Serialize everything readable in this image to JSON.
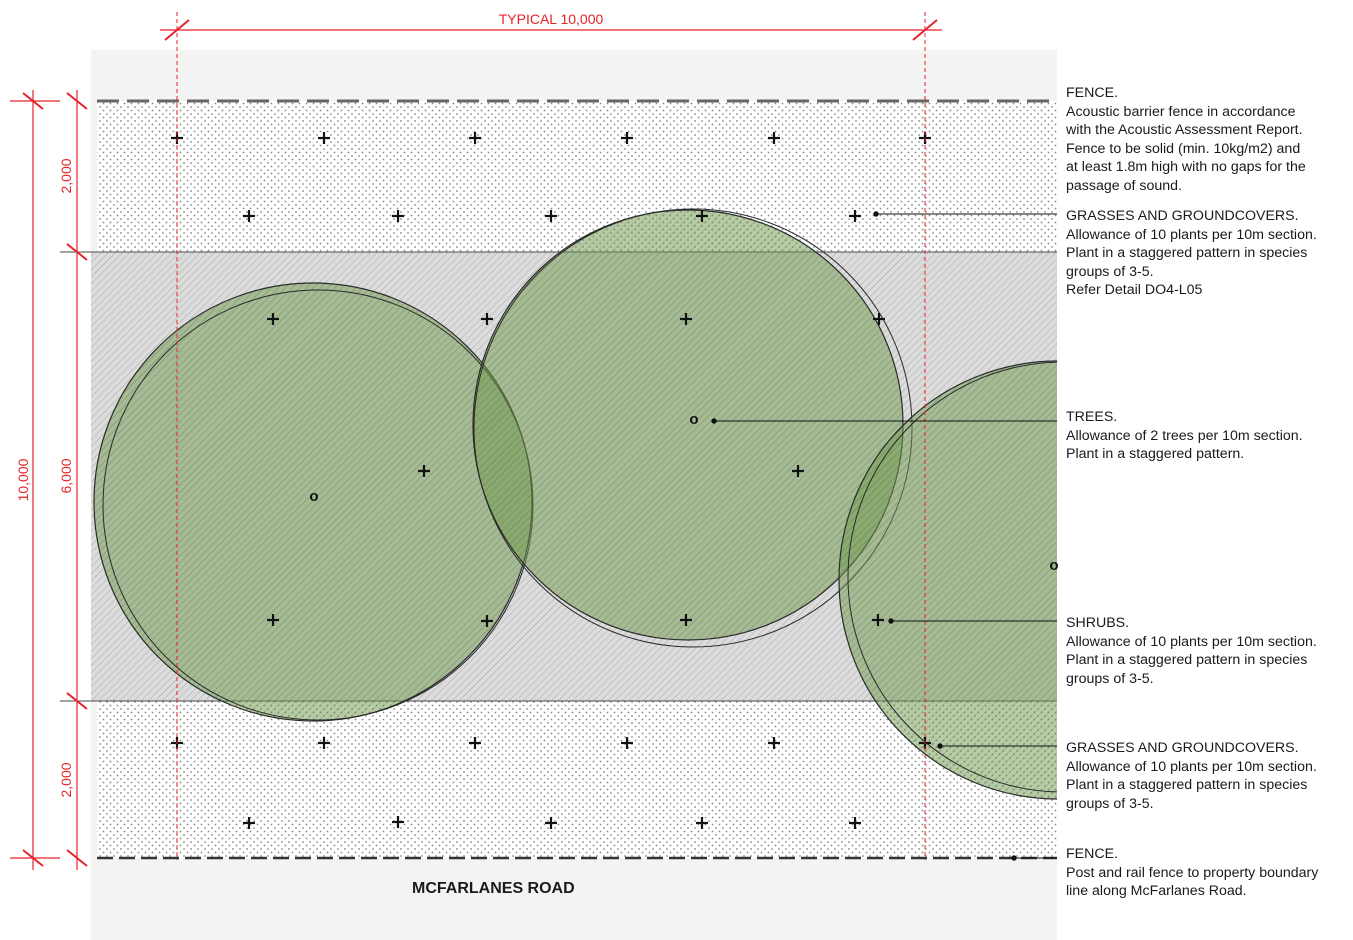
{
  "dimensions": {
    "typical_width": "TYPICAL 10,000",
    "total_depth": "10,000",
    "top_band": "2,000",
    "middle_band": "6,000",
    "bottom_band": "2,000"
  },
  "road_label": "MCFARLANES ROAD",
  "colors": {
    "dimension": "#e8222a",
    "tree_fill": "#6f9a4e",
    "tree_edge": "#2a2a2a",
    "hatch": "#9a9a9a",
    "dots": "#8a8a8a"
  },
  "notes": [
    {
      "heading": "FENCE.",
      "lines": [
        "Acoustic barrier fence in accordance",
        "with the Acoustic Assessment Report.",
        "Fence to be solid (min. 10kg/m2) and",
        "at least 1.8m high with no gaps for the",
        "passage of sound."
      ]
    },
    {
      "heading": "GRASSES AND GROUNDCOVERS.",
      "lines": [
        "Allowance of 10 plants per 10m section.",
        "Plant in a staggered pattern in species",
        "groups of 3-5.",
        "Refer Detail DO4-L05"
      ]
    },
    {
      "heading": "TREES.",
      "lines": [
        "Allowance of 2 trees per 10m section.",
        "Plant in a staggered pattern."
      ]
    },
    {
      "heading": "SHRUBS.",
      "lines": [
        "Allowance of 10 plants per 10m section.",
        "Plant in a staggered pattern in species",
        "groups of 3-5."
      ]
    },
    {
      "heading": "GRASSES AND GROUNDCOVERS.",
      "lines": [
        "Allowance of 10 plants per 10m section.",
        "Plant in a staggered pattern in species",
        "groups of 3-5."
      ]
    },
    {
      "heading": "FENCE.",
      "lines": [
        "Post and rail fence to property boundary",
        "line along McFarlanes Road."
      ]
    }
  ]
}
